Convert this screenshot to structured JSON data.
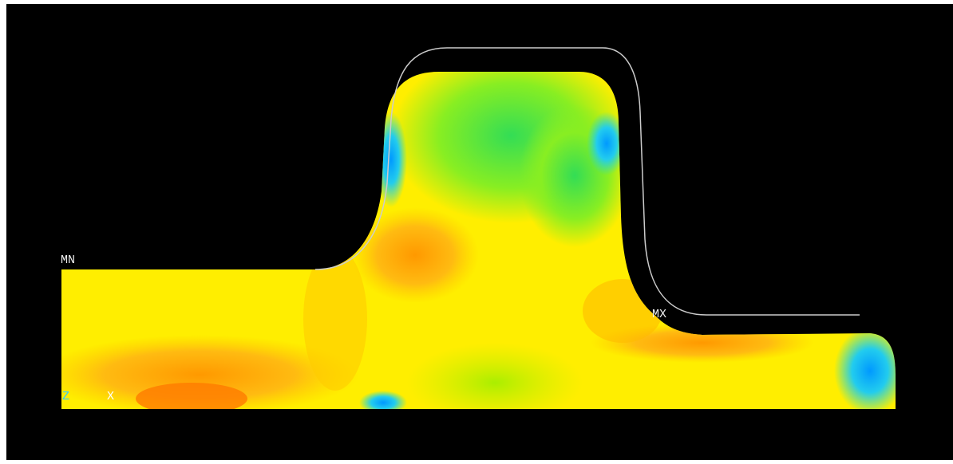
{
  "labels": {
    "min": "MN",
    "max": "MX"
  },
  "axes": {
    "z": "Z",
    "x": "X"
  }
}
